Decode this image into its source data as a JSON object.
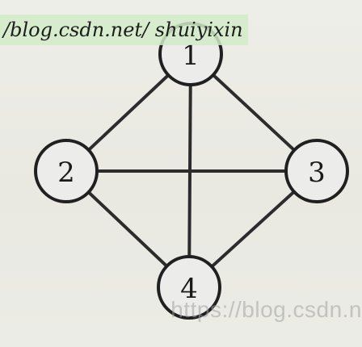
{
  "watermarks": {
    "top": "/blog.csdn.net/ shuiyixin",
    "bottom": "https://blog.csdn.n"
  },
  "graph": {
    "nodes": [
      {
        "id": "1",
        "label": "1"
      },
      {
        "id": "2",
        "label": "2"
      },
      {
        "id": "3",
        "label": "3"
      },
      {
        "id": "4",
        "label": "4"
      }
    ],
    "edges": [
      {
        "from": "1",
        "to": "2"
      },
      {
        "from": "1",
        "to": "3"
      },
      {
        "from": "1",
        "to": "4"
      },
      {
        "from": "2",
        "to": "3"
      },
      {
        "from": "2",
        "to": "4"
      },
      {
        "from": "3",
        "to": "4"
      }
    ]
  },
  "colors": {
    "stroke": "#202020",
    "node_fill": "#ececea",
    "watermark_highlight": "#d2ebc8"
  }
}
